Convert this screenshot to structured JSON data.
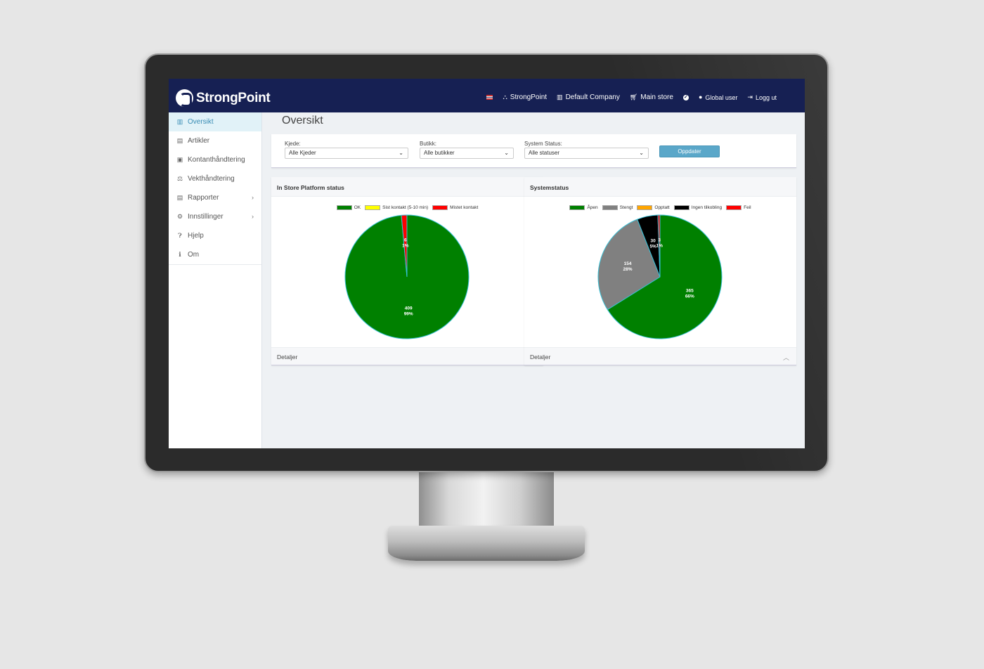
{
  "app": {
    "brand": "StrongPoint"
  },
  "topnav": {
    "items": [
      {
        "label": "StrongPoint",
        "icon": "sitemap-icon"
      },
      {
        "label": "Default Company",
        "icon": "building-icon"
      },
      {
        "label": "Main store",
        "icon": "cart-icon"
      },
      {
        "label": "",
        "icon": "check-circle-icon"
      },
      {
        "label": "Global user",
        "icon": "user-icon"
      },
      {
        "label": "Logg ut",
        "icon": "logout-icon"
      }
    ]
  },
  "sidebar": {
    "items": [
      {
        "label": "Oversikt",
        "icon": "chart-icon",
        "active": true
      },
      {
        "label": "Artikler",
        "icon": "list-icon"
      },
      {
        "label": "Kontanthåndtering",
        "icon": "cash-icon"
      },
      {
        "label": "Vekthåndtering",
        "icon": "scale-icon"
      },
      {
        "label": "Rapporter",
        "icon": "report-icon",
        "has_children": true
      },
      {
        "label": "Innstillinger",
        "icon": "cogs-icon",
        "has_children": true
      },
      {
        "label": "Hjelp",
        "icon": "question-icon"
      },
      {
        "label": "Om",
        "icon": "info-icon"
      }
    ]
  },
  "main": {
    "title": "Oversikt",
    "filters": {
      "kjede": {
        "label": "Kjede:",
        "value": "Alle Kjeder"
      },
      "butikk": {
        "label": "Butikk:",
        "value": "Alle butikker"
      },
      "status": {
        "label": "System Status:",
        "value": "Alle statuser"
      },
      "update_label": "Oppdater"
    },
    "footer_label": "Detaljer"
  },
  "chart_data": [
    {
      "type": "pie",
      "title": "In Store Platform status",
      "categories": [
        "OK",
        "Sist kontakt (5-10 min)",
        "Mistet kontakt"
      ],
      "values": [
        409,
        0,
        6
      ],
      "labels": [
        [
          "409",
          "99%"
        ],
        [
          "",
          ""
        ],
        [
          "6",
          "1%"
        ]
      ],
      "colors": [
        "#008000",
        "#ffff00",
        "#ff0000"
      ]
    },
    {
      "type": "pie",
      "title": "Systemstatus",
      "categories": [
        "Åpen",
        "Stengt",
        "Opptatt",
        "Ingen tilkobling",
        "Feil"
      ],
      "values": [
        365,
        154,
        0,
        30,
        3
      ],
      "labels": [
        [
          "365",
          "66%"
        ],
        [
          "154",
          "28%"
        ],
        [
          "",
          ""
        ],
        [
          "30",
          "5%"
        ],
        [
          "3",
          "1%"
        ]
      ],
      "colors": [
        "#008000",
        "#808080",
        "#ffa500",
        "#000000",
        "#ff0000"
      ]
    }
  ]
}
